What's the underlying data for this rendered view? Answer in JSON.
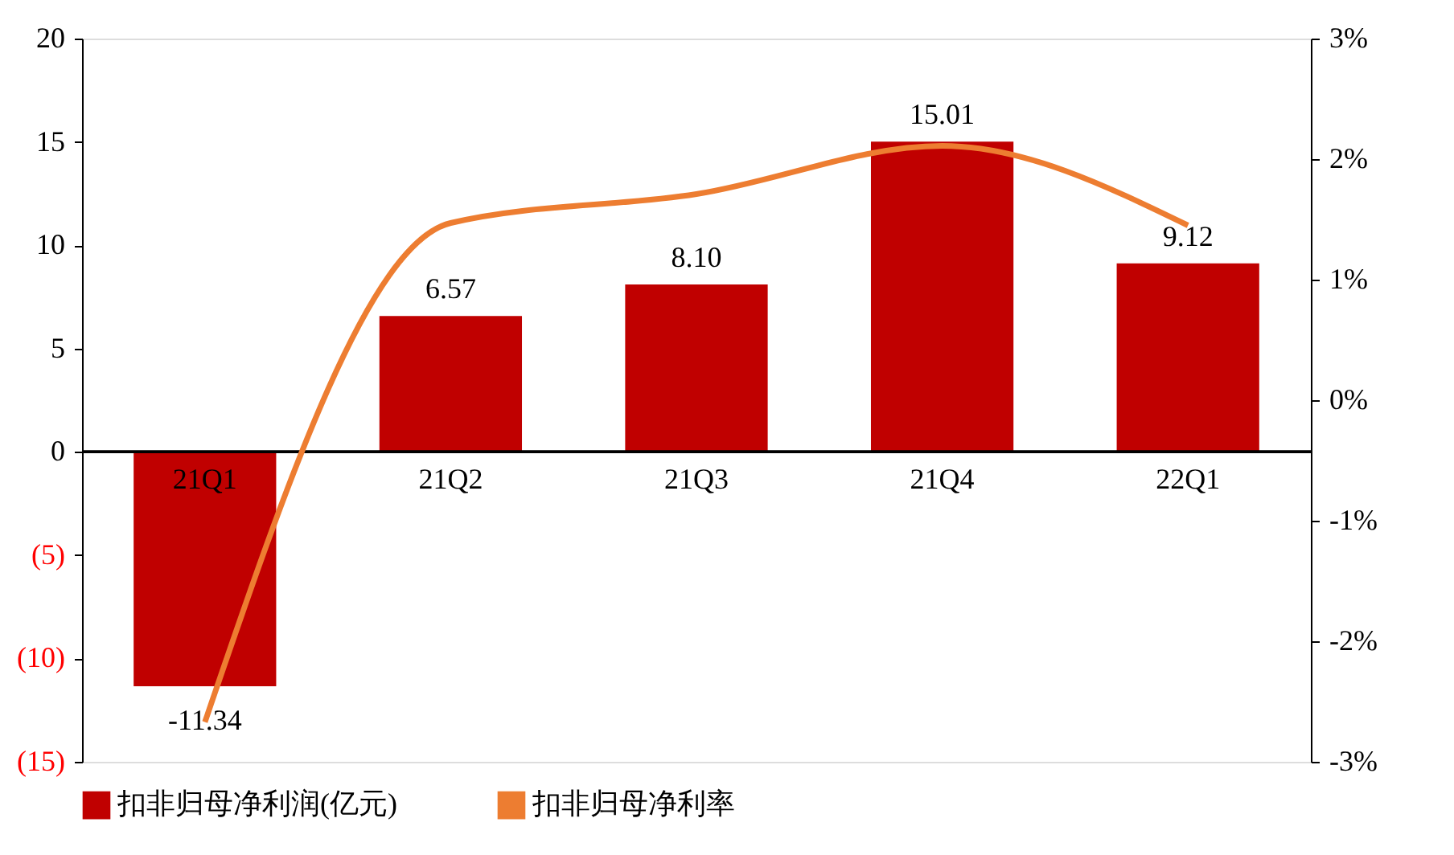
{
  "chart_data": {
    "type": "bar",
    "categories": [
      "21Q1",
      "21Q2",
      "21Q3",
      "21Q4",
      "22Q1"
    ],
    "series": [
      {
        "name": "扣非归母净利润(亿元)",
        "color": "#c00000",
        "values": [
          -11.34,
          6.57,
          8.1,
          15.01,
          9.12
        ],
        "value_labels": [
          "-11.34",
          "6.57",
          "8.10",
          "15.01",
          "9.12"
        ]
      },
      {
        "name": "扣非归母净利率",
        "type": "line",
        "axis": "y2",
        "color": "#ed7d31",
        "values": [
          -2.67,
          1.47,
          1.71,
          2.11,
          1.45
        ]
      }
    ],
    "ylim": [
      -15,
      20
    ],
    "yticks": [
      {
        "value": 20,
        "label": "20"
      },
      {
        "value": 15,
        "label": "15"
      },
      {
        "value": 10,
        "label": "10"
      },
      {
        "value": 5,
        "label": "5"
      },
      {
        "value": 0,
        "label": "0"
      },
      {
        "value": -5,
        "label": "(5)"
      },
      {
        "value": -10,
        "label": "(10)"
      },
      {
        "value": -15,
        "label": "(15)"
      }
    ],
    "y2lim": [
      -3,
      3
    ],
    "y2ticks": [
      {
        "value": 3,
        "label": "3%"
      },
      {
        "value": 2,
        "label": "2%"
      },
      {
        "value": 1,
        "label": "1%"
      },
      {
        "value": 0,
        "label": "0%"
      },
      {
        "value": -1,
        "label": "-1%"
      },
      {
        "value": -2,
        "label": "-2%"
      },
      {
        "value": -3,
        "label": "-3%"
      }
    ],
    "legend": "bottom",
    "grid": false
  }
}
